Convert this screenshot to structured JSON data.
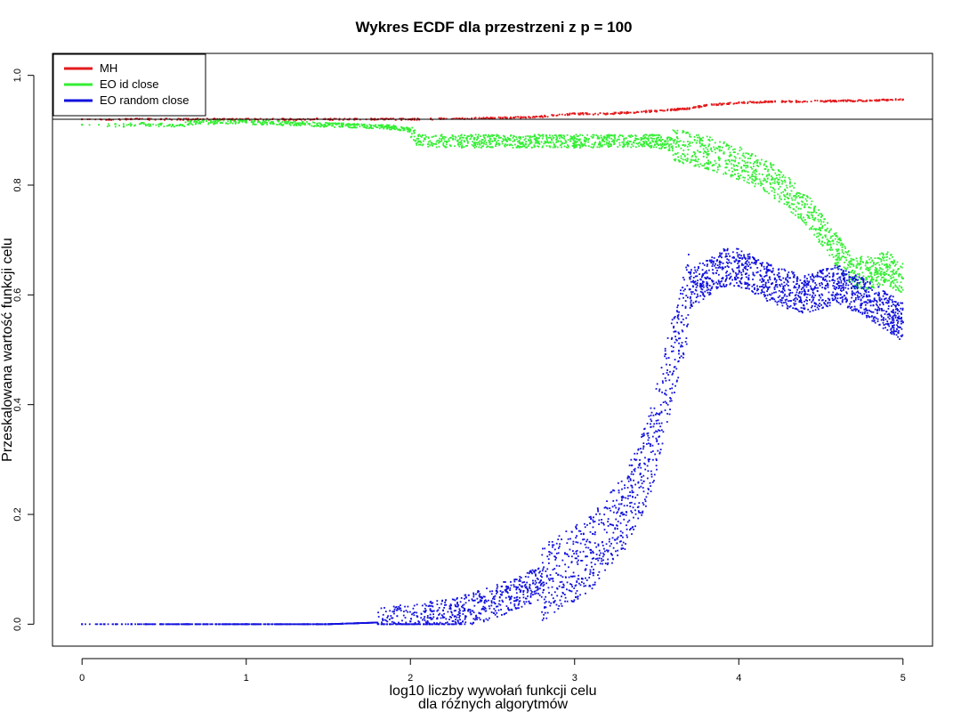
{
  "chart_data": {
    "type": "scatter",
    "title": "Wykres ECDF dla przestrzeni z p = 100",
    "xlabel_line1": "log10 liczby wywołań funkcji celu",
    "xlabel_line2": "dla różnych algorytmów",
    "ylabel": "Przeskalowana wartość funkcji celu",
    "xlim": [
      -0.18,
      5.18
    ],
    "ylim": [
      -0.04,
      1.04
    ],
    "x_ticks": [
      0,
      1,
      2,
      3,
      4,
      5
    ],
    "y_ticks": [
      0.0,
      0.2,
      0.4,
      0.6,
      0.8,
      1.0
    ],
    "x_tick_labels": [
      "0",
      "1",
      "2",
      "3",
      "4",
      "5"
    ],
    "y_tick_labels": [
      "0.0",
      "0.2",
      "0.4",
      "0.6",
      "0.8",
      "1.0"
    ],
    "grid": false,
    "legend_position": "top-left",
    "reference_line_y": 0.92,
    "series": [
      {
        "name": "MH",
        "color": "#e31a1c",
        "x": [
          0,
          0.3,
          0.48,
          0.6,
          0.7,
          0.8,
          0.9,
          1.0,
          1.5,
          2.0,
          2.5,
          2.8,
          3.0,
          3.2,
          3.5,
          3.7,
          3.8,
          3.9,
          4.0,
          4.2,
          4.5,
          4.8,
          5.0
        ],
        "y": [
          0.92,
          0.92,
          0.92,
          0.92,
          0.92,
          0.92,
          0.92,
          0.92,
          0.92,
          0.92,
          0.922,
          0.925,
          0.93,
          0.93,
          0.935,
          0.94,
          0.945,
          0.948,
          0.95,
          0.952,
          0.953,
          0.954,
          0.956
        ]
      },
      {
        "name": "EO id close",
        "color": "#33ee33",
        "x": [
          0,
          0.3,
          0.48,
          0.6,
          0.7,
          1.0,
          1.5,
          1.9,
          2.0,
          2.05,
          2.5,
          3.0,
          3.5,
          3.8,
          4.0,
          4.2,
          4.4,
          4.6,
          4.7,
          4.8,
          4.9,
          5.0
        ],
        "y": [
          0.91,
          0.91,
          0.91,
          0.91,
          0.915,
          0.915,
          0.91,
          0.905,
          0.9,
          0.88,
          0.88,
          0.88,
          0.88,
          0.86,
          0.84,
          0.81,
          0.76,
          0.68,
          0.64,
          0.64,
          0.65,
          0.63
        ]
      },
      {
        "name": "EO random close",
        "color": "#1010dd",
        "x": [
          0,
          0.3,
          0.48,
          1.0,
          1.5,
          2.0,
          2.3,
          2.6,
          2.9,
          3.1,
          3.3,
          3.45,
          3.55,
          3.65,
          3.7,
          3.8,
          3.9,
          4.0,
          4.2,
          4.4,
          4.6,
          4.8,
          5.0
        ],
        "y": [
          0.0,
          0.0,
          0.0,
          0.0,
          0.0,
          0.005,
          0.02,
          0.05,
          0.09,
          0.13,
          0.2,
          0.3,
          0.42,
          0.55,
          0.61,
          0.63,
          0.65,
          0.65,
          0.62,
          0.6,
          0.62,
          0.59,
          0.55
        ]
      }
    ]
  }
}
